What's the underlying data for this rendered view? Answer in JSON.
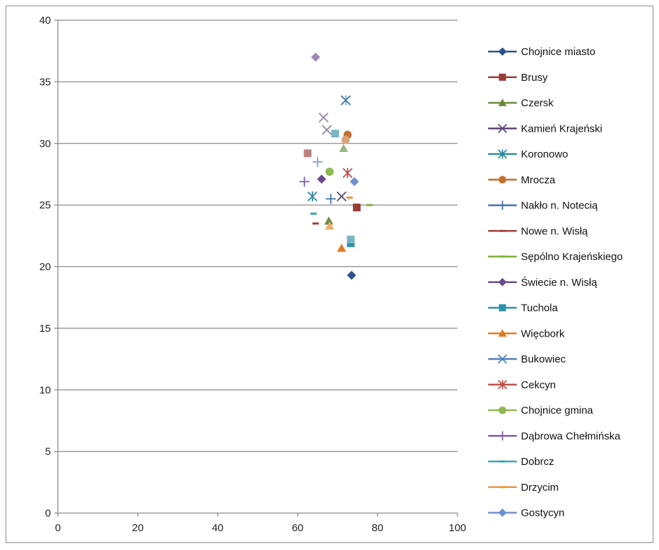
{
  "chart_data": {
    "type": "scatter",
    "title": "",
    "xlabel": "",
    "ylabel": "",
    "xlim": [
      0,
      100
    ],
    "ylim": [
      0,
      40
    ],
    "x_ticks": [
      0,
      20,
      40,
      60,
      80,
      100
    ],
    "y_ticks": [
      0,
      5,
      10,
      15,
      20,
      25,
      30,
      35,
      40
    ],
    "grid": "horizontal",
    "legend_position": "right",
    "series": [
      {
        "name": "Chojnice miasto",
        "color": "#2f4f8f",
        "marker": "diamond",
        "points": [
          [
            73.5,
            19.3
          ]
        ]
      },
      {
        "name": "Brusy",
        "color": "#9a3b38",
        "marker": "square",
        "points": [
          [
            74.8,
            24.8
          ],
          [
            62.5,
            29.2
          ]
        ]
      },
      {
        "name": "Czersk",
        "color": "#6e8b3d",
        "marker": "triangle",
        "points": [
          [
            67.8,
            23.7
          ],
          [
            71.5,
            29.6
          ]
        ]
      },
      {
        "name": "Kamień Krajeński",
        "color": "#5c4577",
        "marker": "x",
        "points": [
          [
            71.0,
            25.7
          ],
          [
            67.3,
            31.1
          ],
          [
            66.5,
            32.1
          ]
        ]
      },
      {
        "name": "Koronowo",
        "color": "#2e8a9c",
        "marker": "star",
        "points": [
          [
            63.7,
            25.7
          ],
          [
            72.1,
            33.5
          ]
        ]
      },
      {
        "name": "Mrocza",
        "color": "#c46f2c",
        "marker": "circle",
        "points": [
          [
            72.5,
            30.7
          ],
          [
            72.0,
            30.3
          ]
        ]
      },
      {
        "name": "Nakło n. Notecią",
        "color": "#4472a8",
        "marker": "plus",
        "points": [
          [
            68.3,
            25.5
          ],
          [
            65.0,
            28.5
          ]
        ]
      },
      {
        "name": "Nowe n. Wisłą",
        "color": "#a2403c",
        "marker": "dash",
        "points": [
          [
            64.5,
            23.5
          ]
        ]
      },
      {
        "name": "Sępólno Krajeńskiego",
        "color": "#7fae3e",
        "marker": "dash",
        "points": [
          [
            78.0,
            25.0
          ]
        ]
      },
      {
        "name": "Świecie n. Wisłą",
        "color": "#6a4a8c",
        "marker": "diamond",
        "points": [
          [
            66.0,
            27.1
          ],
          [
            64.5,
            37.0
          ]
        ]
      },
      {
        "name": "Tuchola",
        "color": "#2e8fa8",
        "marker": "square",
        "points": [
          [
            73.3,
            21.9
          ],
          [
            73.3,
            22.2
          ],
          [
            69.4,
            30.8
          ]
        ]
      },
      {
        "name": "Więcbork",
        "color": "#e07c22",
        "marker": "triangle",
        "points": [
          [
            71.0,
            21.5
          ],
          [
            68.0,
            23.3
          ]
        ]
      },
      {
        "name": "Bukowiec",
        "color": "#4f7ec0",
        "marker": "x",
        "points": [
          [
            72.0,
            33.5
          ]
        ]
      },
      {
        "name": "Cekcyn",
        "color": "#c0504d",
        "marker": "star",
        "points": [
          [
            72.5,
            27.6
          ]
        ]
      },
      {
        "name": "Chojnice gmina",
        "color": "#8fb84f",
        "marker": "circle",
        "points": [
          [
            68.0,
            27.7
          ]
        ]
      },
      {
        "name": "Dąbrowa Chełmińska",
        "color": "#7e5ca8",
        "marker": "plus",
        "points": [
          [
            61.7,
            26.9
          ]
        ]
      },
      {
        "name": "Dobrcz",
        "color": "#3aa6b9",
        "marker": "dash",
        "points": [
          [
            64.0,
            24.3
          ]
        ]
      },
      {
        "name": "Drzycim",
        "color": "#f0963c",
        "marker": "dash",
        "points": [
          [
            73.0,
            25.6
          ]
        ]
      },
      {
        "name": "Gostycyn",
        "color": "#6e8fd0",
        "marker": "diamond",
        "points": [
          [
            74.2,
            26.9
          ]
        ]
      }
    ]
  }
}
